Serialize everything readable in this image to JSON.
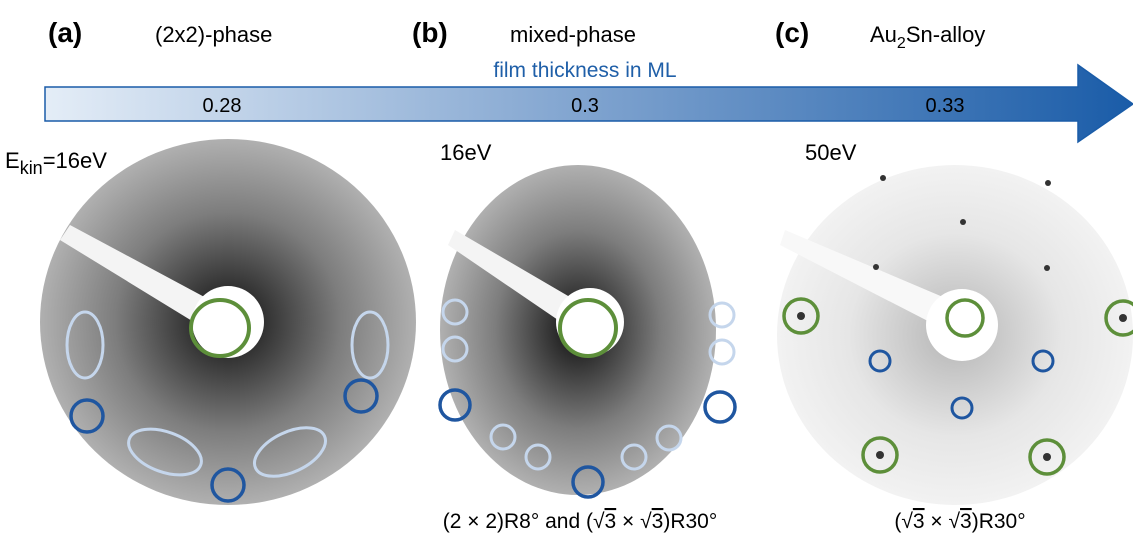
{
  "panels": [
    {
      "label": "(a)",
      "title": [
        "(2x2)-phase"
      ],
      "energy": [
        "E",
        "kin",
        "=16eV"
      ]
    },
    {
      "label": "(b)",
      "title": [
        "mixed-phase"
      ],
      "energy": [
        "16eV"
      ],
      "caption": [
        "(2 × 2)R8° and (",
        "√",
        "3",
        " × ",
        "√",
        "3",
        ")R30°"
      ]
    },
    {
      "label": "(c)",
      "title": [
        "Au",
        "2",
        "Sn-alloy"
      ],
      "energy": [
        "50eV"
      ],
      "caption": [
        "(",
        "√",
        "3",
        " × ",
        "√",
        "3",
        ")R30°"
      ]
    }
  ],
  "arrow": {
    "label": "film thickness in ML",
    "ticks": [
      0.28,
      0.3,
      0.33
    ]
  }
}
